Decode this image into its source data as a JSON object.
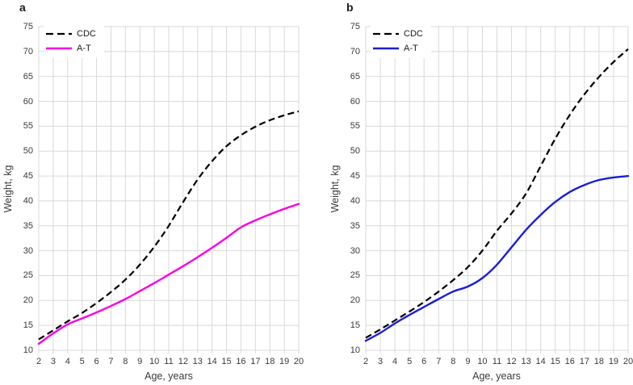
{
  "chart_data": [
    {
      "panel_label": "a",
      "type": "line",
      "xlabel": "Age, years",
      "ylabel": "Weight, kg",
      "xlim": [
        2,
        20
      ],
      "ylim": [
        10,
        75
      ],
      "xtick_step": 1,
      "ytick_step": 5,
      "grid": true,
      "legend_position": "top-left",
      "x": [
        2,
        3,
        4,
        5,
        6,
        7,
        8,
        9,
        10,
        11,
        12,
        13,
        14,
        15,
        16,
        17,
        18,
        19,
        20
      ],
      "series": [
        {
          "name": "CDC",
          "color": "#000000",
          "line_style": "dashed",
          "values": [
            12.2,
            14.0,
            15.8,
            17.5,
            19.5,
            21.7,
            24.2,
            27.2,
            30.8,
            35.0,
            39.8,
            44.3,
            48.0,
            51.0,
            53.2,
            54.9,
            56.2,
            57.2,
            58.0
          ]
        },
        {
          "name": "A-T",
          "color": "#FA00E6",
          "line_style": "solid",
          "values": [
            11.3,
            13.4,
            15.2,
            16.4,
            17.6,
            18.9,
            20.3,
            21.9,
            23.5,
            25.2,
            26.9,
            28.7,
            30.6,
            32.6,
            34.7,
            36.1,
            37.3,
            38.4,
            39.4
          ]
        }
      ]
    },
    {
      "panel_label": "b",
      "type": "line",
      "xlabel": "Age, years",
      "ylabel": "Weight, kg",
      "xlim": [
        2,
        20
      ],
      "ylim": [
        10,
        75
      ],
      "xtick_step": 1,
      "ytick_step": 5,
      "grid": true,
      "legend_position": "top-left",
      "x": [
        2,
        3,
        4,
        5,
        6,
        7,
        8,
        9,
        10,
        11,
        12,
        13,
        14,
        15,
        16,
        17,
        18,
        19,
        20
      ],
      "series": [
        {
          "name": "CDC",
          "color": "#000000",
          "line_style": "dashed",
          "values": [
            12.5,
            14.2,
            16.0,
            17.8,
            19.7,
            21.8,
            24.1,
            26.7,
            30.0,
            34.0,
            37.5,
            41.5,
            47.0,
            52.5,
            57.3,
            61.4,
            64.9,
            67.9,
            70.5
          ]
        },
        {
          "name": "A-T",
          "color": "#1A1FD6",
          "line_style": "solid",
          "values": [
            11.9,
            13.5,
            15.4,
            17.1,
            18.7,
            20.3,
            21.8,
            22.8,
            24.5,
            27.2,
            30.7,
            34.2,
            37.2,
            39.8,
            41.8,
            43.2,
            44.2,
            44.7,
            45.0
          ]
        }
      ]
    }
  ],
  "grid_color": "#D9D9D9",
  "text_color": "#3A3A3A",
  "background": "#FFFFFF"
}
